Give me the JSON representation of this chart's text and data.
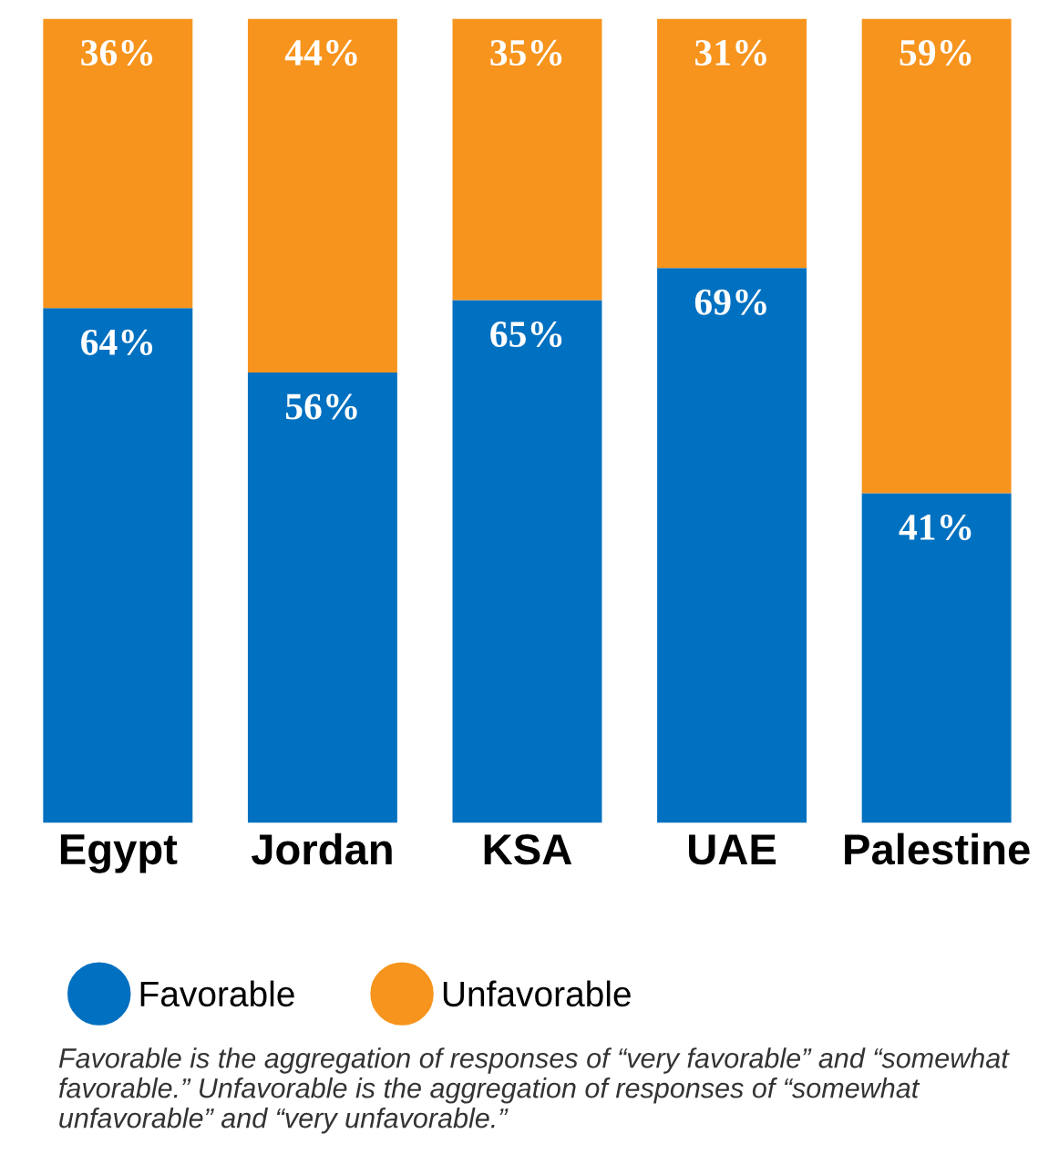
{
  "chart_data": {
    "type": "bar",
    "stacked": true,
    "categories": [
      "Egypt",
      "Jordan",
      "KSA",
      "UAE",
      "Palestine"
    ],
    "series": [
      {
        "name": "Favorable",
        "color": "#0070c0",
        "values": [
          64,
          56,
          65,
          69,
          41
        ],
        "value_labels": [
          "64%",
          "56%",
          "65%",
          "69%",
          "41%"
        ]
      },
      {
        "name": "Unfavorable",
        "color": "#f7941d",
        "values": [
          36,
          44,
          35,
          31,
          59
        ],
        "value_labels": [
          "36%",
          "44%",
          "35%",
          "31%",
          "59%"
        ]
      }
    ],
    "legend": "bottom",
    "grid": false,
    "tick_labels": "x",
    "annotations": [
      "Favorable is the aggregation of responses of “very favorable” and “somewhat favorable.” Unfavorable is the aggregation of responses of “somewhat unfavorable” and “very unfavorable.”"
    ]
  }
}
